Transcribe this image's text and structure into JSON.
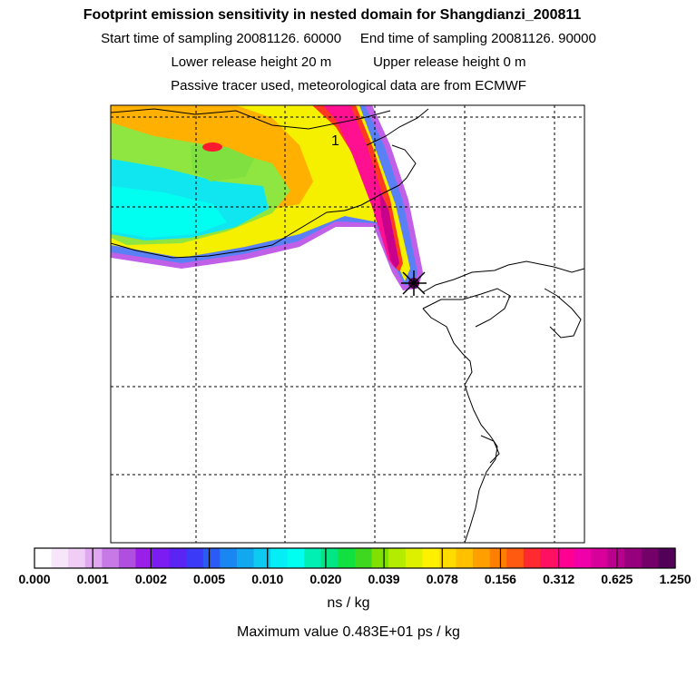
{
  "header": {
    "title": "Footprint emission sensitivity in nested domain for Shangdianzi_200811",
    "start_label": "Start time of sampling 20081126. 60000",
    "end_label": "End time of sampling 20081126. 90000",
    "lower_label": "Lower release height   20 m",
    "upper_label": "Upper release height    0 m",
    "note": "Passive tracer used, meteorological data are from ECMWF"
  },
  "map": {
    "contour_label": "1",
    "receptor_marker": "x-star-marker"
  },
  "colorbar": {
    "ticks": [
      "0.000",
      "0.001",
      "0.002",
      "0.005",
      "0.010",
      "0.020",
      "0.039",
      "0.078",
      "0.156",
      "0.312",
      "0.625",
      "1.250"
    ],
    "colors": [
      "#ffffff",
      "#f7e6fa",
      "#efcdf5",
      "#e0a8f0",
      "#c77ae6",
      "#b04ee0",
      "#9a1fe8",
      "#7a1cf2",
      "#5a24f5",
      "#3a3af7",
      "#2a5cf5",
      "#1a86f2",
      "#12a8f0",
      "#0ccaf2",
      "#06eef5",
      "#00fff0",
      "#00f0b4",
      "#00e684",
      "#10e040",
      "#3ed820",
      "#80e000",
      "#b4ec00",
      "#dcf000",
      "#fff000",
      "#ffdc00",
      "#ffc000",
      "#ffa000",
      "#ff8000",
      "#ff5a10",
      "#ff2a30",
      "#ff1060",
      "#ff0090",
      "#f000a8",
      "#d8009a",
      "#b8008c",
      "#96007c",
      "#74006a",
      "#520058"
    ],
    "unit": "ns / kg"
  },
  "footer": {
    "max_value": "Maximum value  0.483E+01 ps / kg"
  }
}
